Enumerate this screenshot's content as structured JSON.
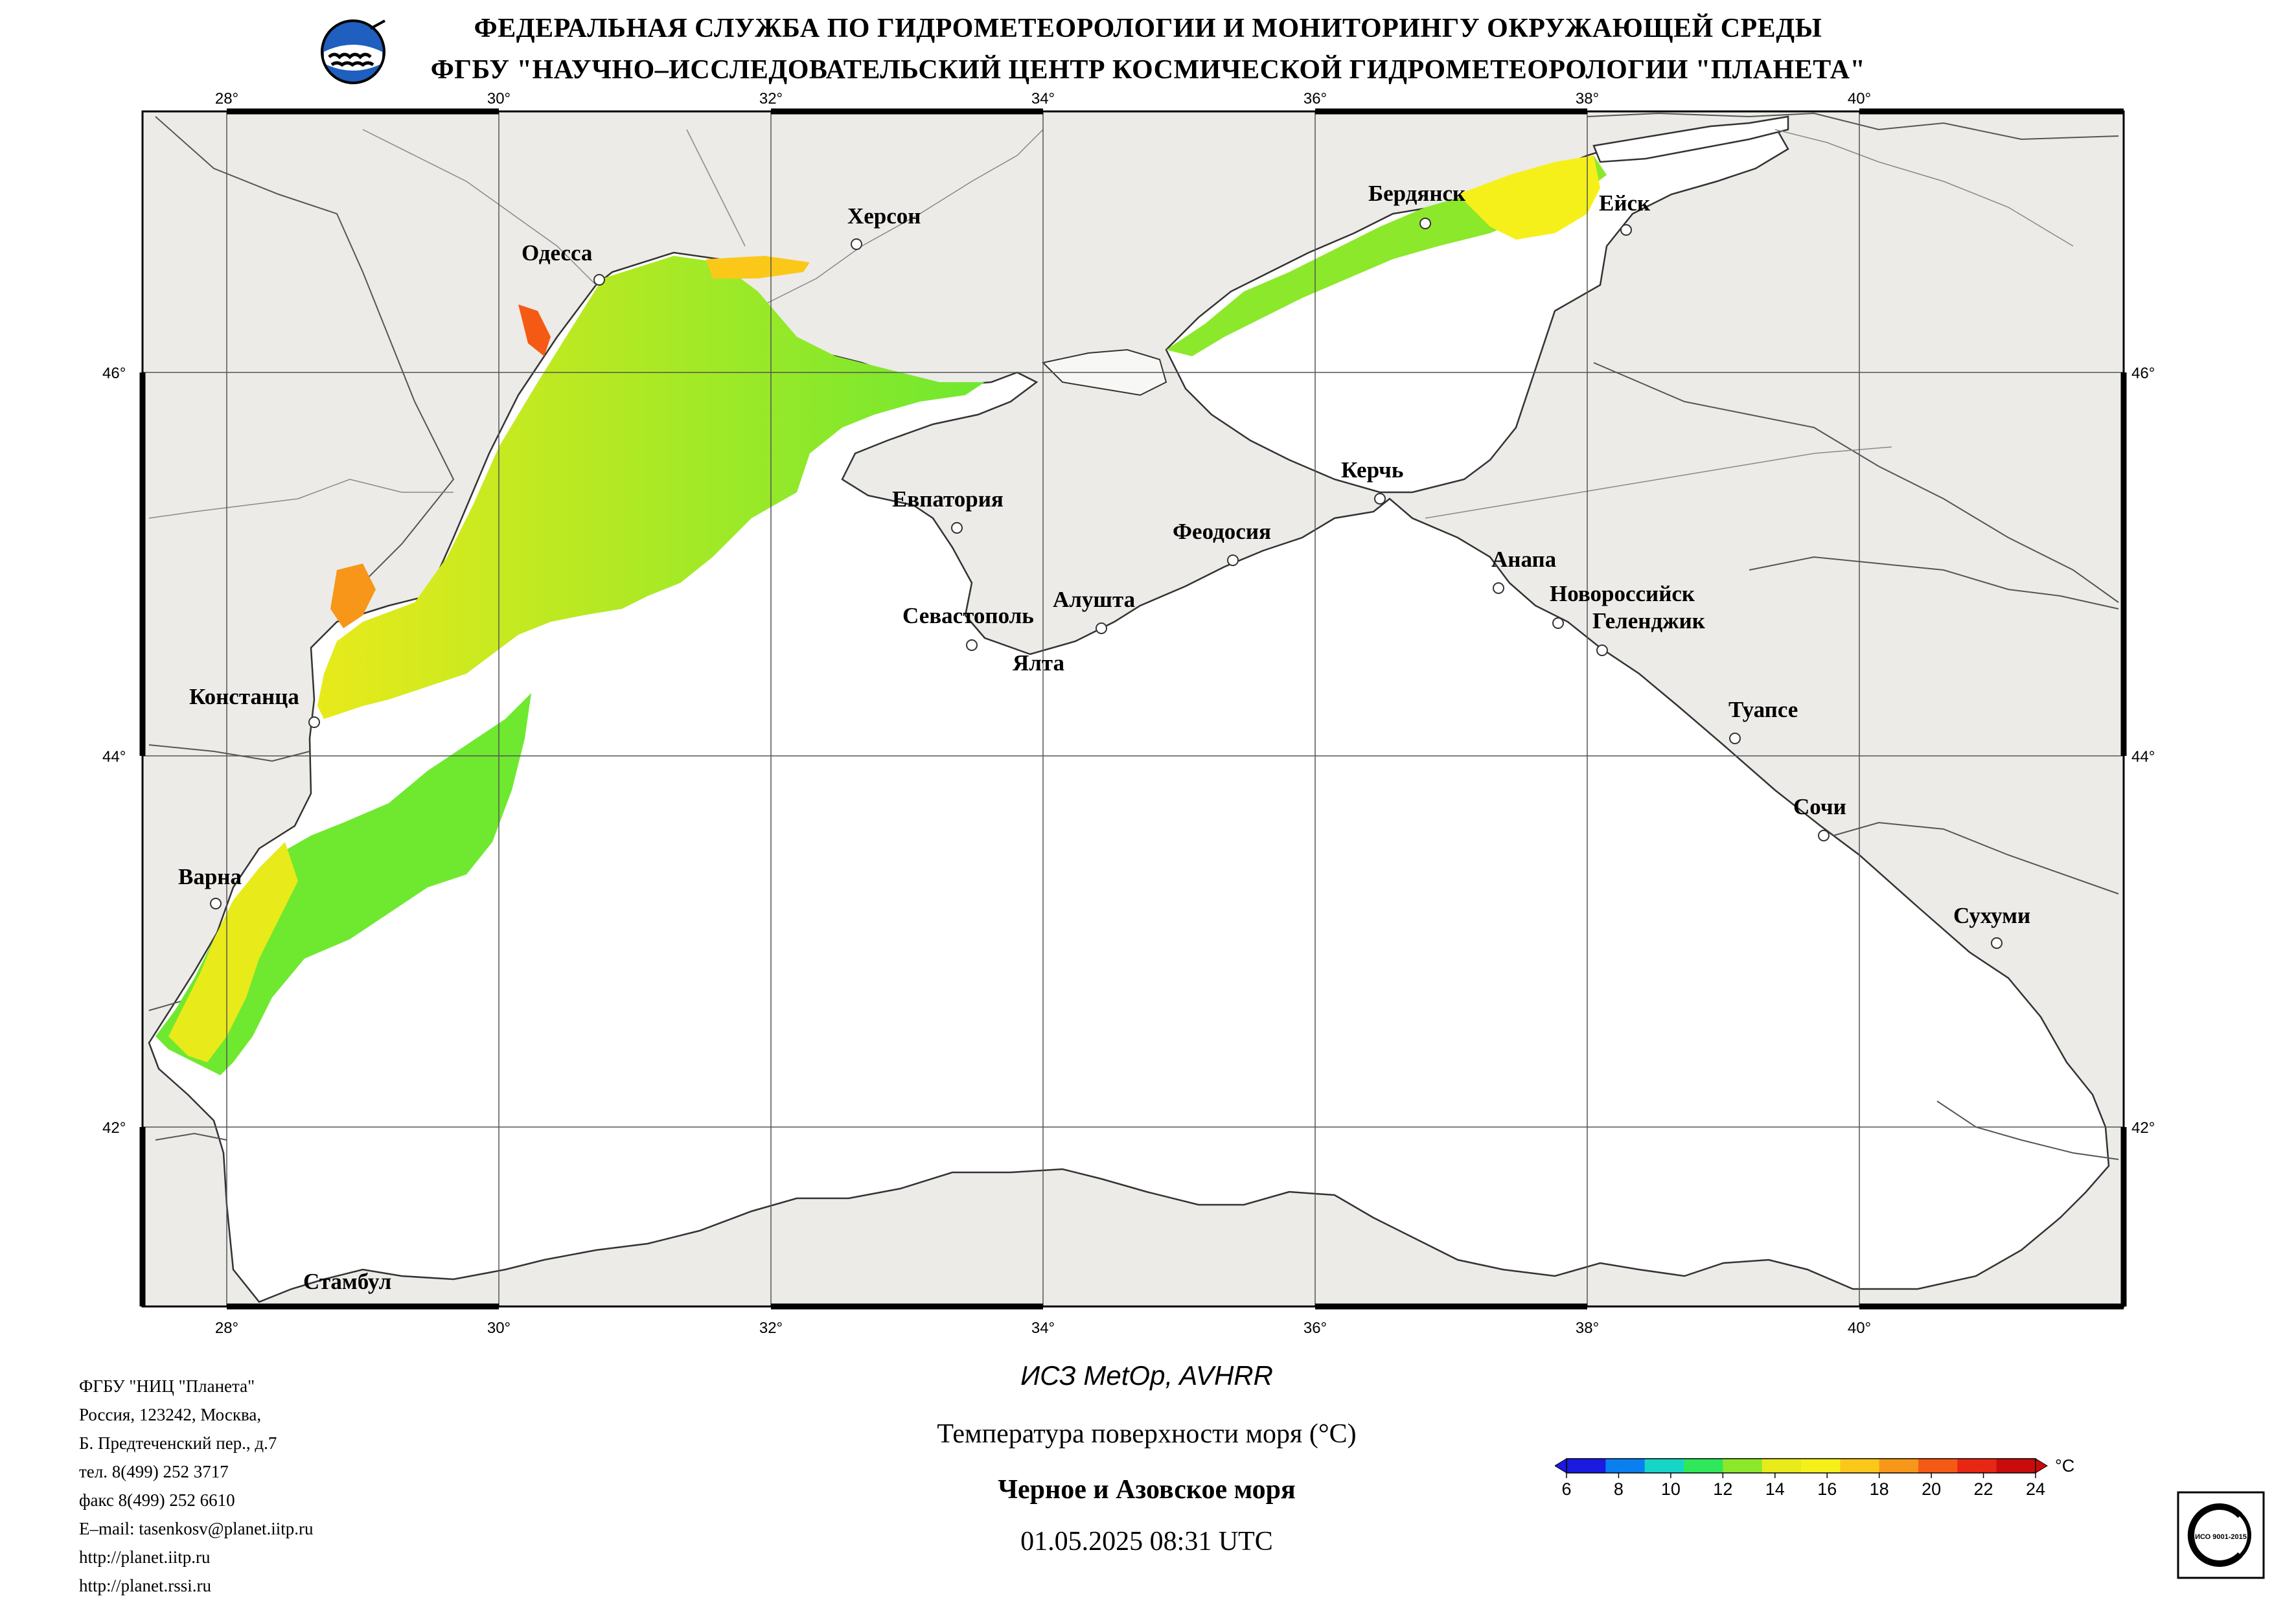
{
  "header": {
    "line1": "ФЕДЕРАЛЬНАЯ СЛУЖБА ПО ГИДРОМЕТЕОРОЛОГИИ И МОНИТОРИНГУ ОКРУЖАЮЩЕЙ СРЕДЫ",
    "line2": "ФГБУ \"НАУЧНО–ИССЛЕДОВАТЕЛЬСКИЙ ЦЕНТР КОСМИЧЕСКОЙ ГИДРОМЕТЕОРОЛОГИИ \"ПЛАНЕТА\""
  },
  "map": {
    "lon_ticks": [
      "28°",
      "30°",
      "32°",
      "34°",
      "36°",
      "38°",
      "40°"
    ],
    "lat_ticks": [
      "46°",
      "44°",
      "42°"
    ],
    "cities": {
      "odessa": "Одесса",
      "kherson": "Херсон",
      "berdyansk": "Бердянск",
      "yeysk": "Ейск",
      "evpatoria": "Евпатория",
      "kerch": "Керчь",
      "feodosia": "Феодосия",
      "anapa": "Анапа",
      "novorossiysk": "Новороссийск",
      "gelendzhik": "Геленджик",
      "sevastopol": "Севастополь",
      "alushta": "Алушта",
      "yalta": "Ялта",
      "constanta": "Констанца",
      "tuapse": "Туапсе",
      "sochi": "Сочи",
      "varna": "Варна",
      "sukhumi": "Сухуми",
      "istanbul": "Стамбул"
    },
    "colors": {
      "land": "#ecebe8",
      "sea": "#ffffff",
      "coast": "#333333",
      "grid": "#555555"
    }
  },
  "contacts": [
    "ФГБУ \"НИЦ \"Планета\"",
    "Россия, 123242, Москва,",
    "Б. Предтеченский пер., д.7",
    "тел. 8(499) 252 3717",
    "факс 8(499) 252 6610",
    "E–mail: tasenkosv@planet.iitp.ru",
    "http://planet.iitp.ru",
    "http://planet.rssi.ru"
  ],
  "caption": {
    "satellite": "ИСЗ MetOp, AVHRR",
    "parameter": "Температура поверхности моря (°C)",
    "region": "Черное и Азовское моря",
    "datetime": "01.05.2025 08:31 UTC"
  },
  "colorbar": {
    "unit": "°C",
    "ticks": [
      "6",
      "8",
      "10",
      "12",
      "14",
      "16",
      "18",
      "20",
      "22",
      "24"
    ],
    "colors": [
      "#1a1ae0",
      "#0a7ff0",
      "#15d6c6",
      "#2ee85a",
      "#8ce82a",
      "#e8ea1a",
      "#f6f01a",
      "#fbc81a",
      "#f8961a",
      "#f55a14",
      "#e82614",
      "#c80c0c"
    ]
  },
  "certificate": {
    "text": "ИСО 9001-2015"
  }
}
